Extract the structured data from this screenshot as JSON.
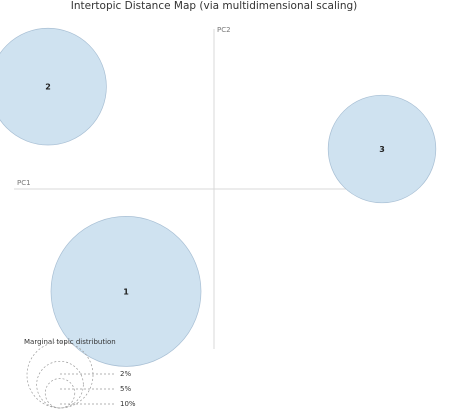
{
  "chart_data": {
    "type": "scatter",
    "title": "Intertopic Distance Map (via multidimensional scaling)",
    "xlabel": "PC1",
    "ylabel": "PC2",
    "xlim": [
      -1.0,
      1.0
    ],
    "ylim": [
      -1.0,
      1.0
    ],
    "grid": false,
    "bubble_color": "#cfe2f0",
    "bubble_stroke": "#a8bfd4",
    "axis_color": "#d9d9d9",
    "topics": [
      {
        "label": "1",
        "x": -0.44,
        "y": -0.64,
        "size": 33.0
      },
      {
        "label": "2",
        "x": -0.83,
        "y": 0.64,
        "size": 20.0
      },
      {
        "label": "3",
        "x": 0.84,
        "y": 0.25,
        "size": 17.0
      }
    ],
    "legend": {
      "title": "Marginal topic distribution",
      "placement": "bottom-left",
      "entries": [
        {
          "label": "2%",
          "size": 2
        },
        {
          "label": "5%",
          "size": 5
        },
        {
          "label": "10%",
          "size": 10
        }
      ]
    }
  }
}
